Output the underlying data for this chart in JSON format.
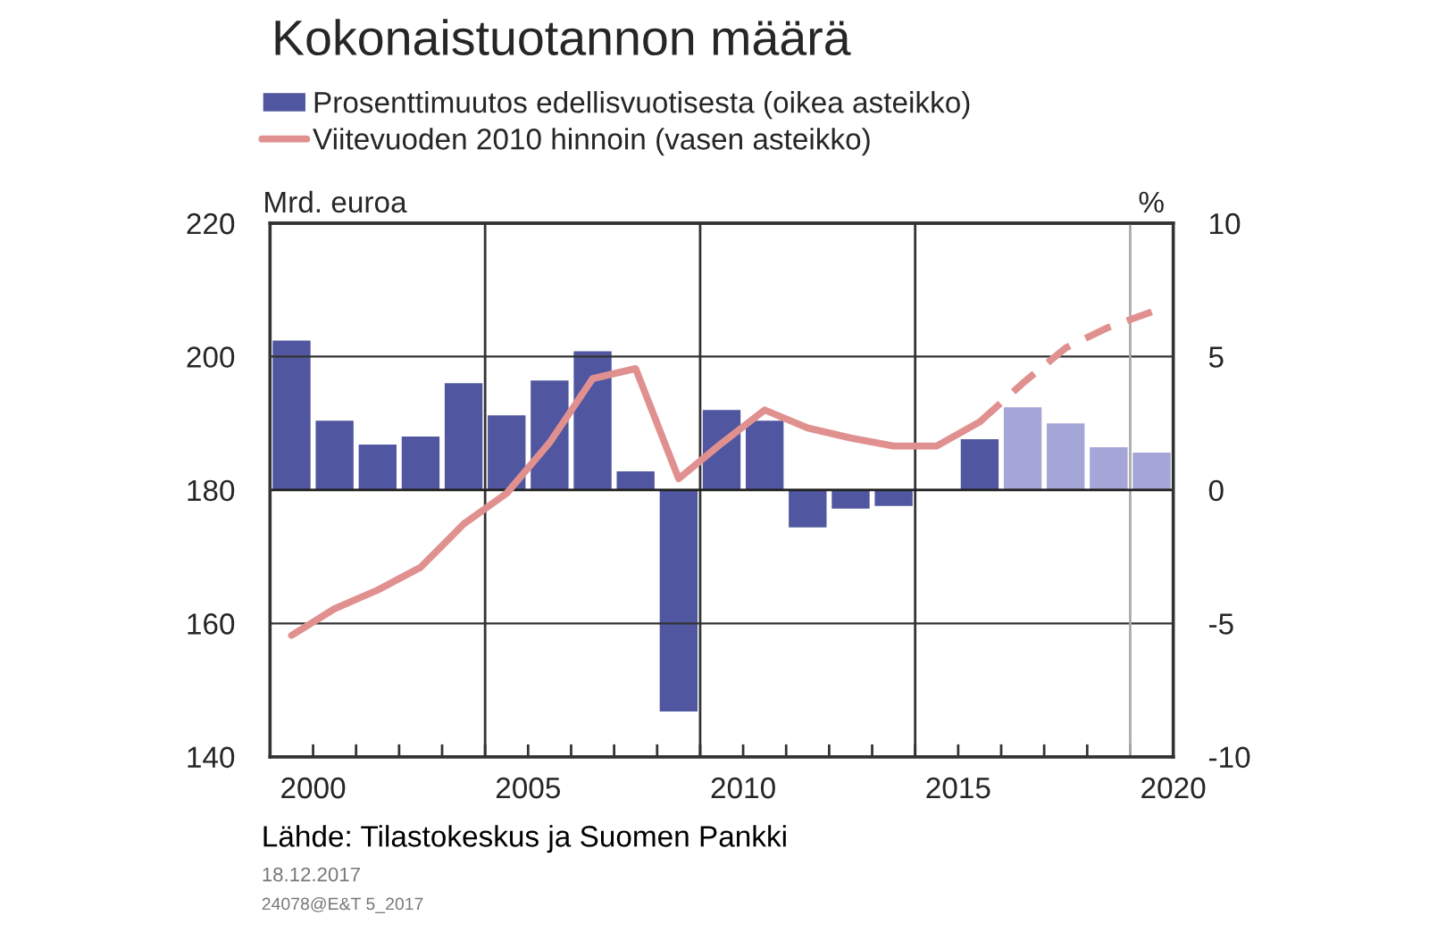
{
  "chart_data": {
    "type": "bar",
    "title": "Kokonaistuotannon määrä",
    "ylabel": "Mrd. euroa",
    "y2label": "%",
    "x": [
      1999,
      2000,
      2001,
      2002,
      2003,
      2004,
      2005,
      2006,
      2007,
      2008,
      2009,
      2010,
      2011,
      2012,
      2013,
      2014,
      2015,
      2016,
      2017,
      2018,
      2019
    ],
    "series": [
      {
        "name": "Prosenttimuutos edellisvuotisesta (oikea asteikko)",
        "axis": "y2",
        "color": "#5056a0",
        "colors": [
          "#5056a0",
          "#5056a0",
          "#5056a0",
          "#5056a0",
          "#5056a0",
          "#5056a0",
          "#5056a0",
          "#5056a0",
          "#5056a0",
          "#5056a0",
          "#5056a0",
          "#5056a0",
          "#5056a0",
          "#5056a0",
          "#5056a0",
          "#a3a6d6",
          "#5056a0",
          "#a3a6d6",
          "#a3a6d6",
          "#a3a6d6",
          "#a3a6d6"
        ],
        "values": [
          5.6,
          2.6,
          1.7,
          2.0,
          4.0,
          2.8,
          4.1,
          5.2,
          0.7,
          -8.3,
          3.0,
          2.6,
          -1.4,
          -0.7,
          -0.6,
          null,
          1.9,
          3.1,
          2.5,
          1.6,
          1.4
        ]
      },
      {
        "name": "Viitevuoden 2010 hinnoin (vasen asteikko)",
        "type": "line",
        "axis": "y",
        "color": "#e0908f",
        "line_style": "solid",
        "x": [
          1999,
          2000,
          2001,
          2002,
          2003,
          2004,
          2005,
          2006,
          2007,
          2008,
          2009,
          2010,
          2011,
          2012,
          2013,
          2014,
          2015
        ],
        "values": [
          158.2,
          162.2,
          165.0,
          168.4,
          174.9,
          179.5,
          187.1,
          196.7,
          198.2,
          181.7,
          187.0,
          192.0,
          189.3,
          187.8,
          186.6,
          186.6,
          190.2
        ]
      },
      {
        "type": "line",
        "axis": "y",
        "color": "#e0908f",
        "line_style": "dashed",
        "x": [
          2015,
          2016,
          2017,
          2018,
          2019
        ],
        "values": [
          190.2,
          196.0,
          201.3,
          204.4,
          206.7
        ]
      }
    ],
    "xlim": [
      1998.5,
      2019.5
    ],
    "xticks": [
      {
        "value": 1998.5,
        "label": null
      },
      {
        "value": 1999.5,
        "label": "2000"
      },
      {
        "value": 2000.5,
        "label": null
      },
      {
        "value": 2001.5,
        "label": null
      },
      {
        "value": 2002.5,
        "label": null
      },
      {
        "value": 2003.5,
        "label": null
      },
      {
        "value": 2004.5,
        "label": "2005"
      },
      {
        "value": 2005.5,
        "label": null
      },
      {
        "value": 2006.5,
        "label": null
      },
      {
        "value": 2007.5,
        "label": null
      },
      {
        "value": 2008.5,
        "label": null
      },
      {
        "value": 2009.5,
        "label": "2010"
      },
      {
        "value": 2010.5,
        "label": null
      },
      {
        "value": 2011.5,
        "label": null
      },
      {
        "value": 2012.5,
        "label": null
      },
      {
        "value": 2013.5,
        "label": null
      },
      {
        "value": 2014.5,
        "label": "2015"
      },
      {
        "value": 2015.5,
        "label": null
      },
      {
        "value": 2016.5,
        "label": null
      },
      {
        "value": 2017.5,
        "label": null
      },
      {
        "value": 2018.5,
        "label": null
      },
      {
        "value": 2019.5,
        "label": "2020"
      }
    ],
    "ylim": [
      140,
      220
    ],
    "yticks": [
      140,
      160,
      180,
      200,
      220
    ],
    "y2lim": [
      -10,
      10
    ],
    "y2ticks": [
      -10,
      -5,
      0,
      5,
      10
    ],
    "ref_lines": [
      {
        "axis": "x",
        "value": 2003.5,
        "color": "#333333"
      },
      {
        "axis": "x",
        "value": 2008.5,
        "color": "#333333"
      },
      {
        "axis": "x",
        "value": 2013.5,
        "color": "#333333"
      },
      {
        "axis": "x",
        "value": 2018.5,
        "color": "#aaaaaa"
      }
    ],
    "grid": "y",
    "legend": "top left",
    "annotations": [
      "Lähde: Tilastokeskus ja Suomen Pankki",
      "18.12.2017",
      "24078@E&T 5_2017"
    ]
  }
}
